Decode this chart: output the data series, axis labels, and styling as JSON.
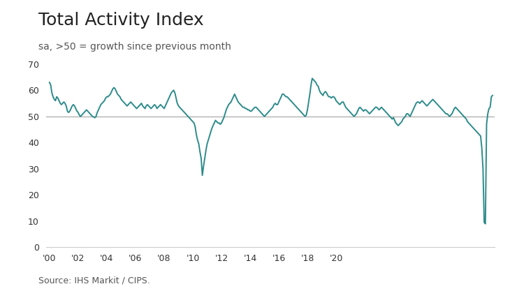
{
  "title": "Total Activity Index",
  "subtitle": "sa, >50 = growth since previous month",
  "source": "Source: IHS Markit / CIPS.",
  "line_color": "#2d8b8b",
  "reference_line_y": 50,
  "reference_line_color": "#aaaaaa",
  "ylim": [
    0,
    70
  ],
  "yticks": [
    0,
    10,
    20,
    30,
    40,
    50,
    60,
    70
  ],
  "xtick_years": [
    2000,
    2002,
    2004,
    2006,
    2008,
    2010,
    2012,
    2014,
    2016,
    2018,
    2020
  ],
  "xtick_labels": [
    "'00",
    "'02",
    "'04",
    "'06",
    "'08",
    "'10",
    "'12",
    "'14",
    "'16",
    "'18",
    "'20"
  ],
  "background_color": "#ffffff",
  "title_fontsize": 18,
  "subtitle_fontsize": 10,
  "source_fontsize": 9,
  "line_width": 1.4,
  "start_year": 2000,
  "start_month": 1,
  "values": [
    63.0,
    62.0,
    59.0,
    57.5,
    56.5,
    56.0,
    57.5,
    57.0,
    56.0,
    55.0,
    54.5,
    55.0,
    55.5,
    55.0,
    54.0,
    52.0,
    51.5,
    52.0,
    53.0,
    54.0,
    54.5,
    54.0,
    53.0,
    52.0,
    51.5,
    50.5,
    50.0,
    50.5,
    51.0,
    51.5,
    52.0,
    52.5,
    52.0,
    51.5,
    51.0,
    50.5,
    50.0,
    49.8,
    49.5,
    50.0,
    51.5,
    52.5,
    53.5,
    54.5,
    55.0,
    55.5,
    56.0,
    57.0,
    57.5,
    57.5,
    58.0,
    58.5,
    59.5,
    60.5,
    61.0,
    60.5,
    59.5,
    58.5,
    58.0,
    57.5,
    56.5,
    56.0,
    55.5,
    55.0,
    54.5,
    54.0,
    54.5,
    55.0,
    55.5,
    55.0,
    54.5,
    54.0,
    53.5,
    53.0,
    53.5,
    54.0,
    54.5,
    55.0,
    54.0,
    53.5,
    53.0,
    54.0,
    54.5,
    54.0,
    53.5,
    53.0,
    53.5,
    54.0,
    54.5,
    54.0,
    53.0,
    53.5,
    54.0,
    54.5,
    54.0,
    53.5,
    53.0,
    54.0,
    55.0,
    56.0,
    57.0,
    58.0,
    59.0,
    59.5,
    60.0,
    59.0,
    57.0,
    55.0,
    54.0,
    53.5,
    53.0,
    52.5,
    52.0,
    51.5,
    51.0,
    50.5,
    50.0,
    49.5,
    49.0,
    48.5,
    48.0,
    47.5,
    46.0,
    43.0,
    41.0,
    39.5,
    36.5,
    34.0,
    27.5,
    31.0,
    34.0,
    37.0,
    39.5,
    41.0,
    42.5,
    44.0,
    45.5,
    46.5,
    47.5,
    48.5,
    48.0,
    47.5,
    47.5,
    47.0,
    47.5,
    48.5,
    49.5,
    51.0,
    52.5,
    53.5,
    54.5,
    55.0,
    55.5,
    56.5,
    57.5,
    58.5,
    57.5,
    56.5,
    55.5,
    55.0,
    54.5,
    54.0,
    53.5,
    53.5,
    53.0,
    53.0,
    52.5,
    52.5,
    52.0,
    52.0,
    52.5,
    53.0,
    53.5,
    53.5,
    53.0,
    52.5,
    52.0,
    51.5,
    51.0,
    50.5,
    50.0,
    50.5,
    51.0,
    51.5,
    52.0,
    52.5,
    53.0,
    53.5,
    54.5,
    55.0,
    54.5,
    54.5,
    55.5,
    56.5,
    57.5,
    58.5,
    58.5,
    58.0,
    57.5,
    57.5,
    57.0,
    56.5,
    56.0,
    55.5,
    55.0,
    54.5,
    54.0,
    53.5,
    53.0,
    52.5,
    52.0,
    51.5,
    51.0,
    50.5,
    50.0,
    50.5,
    52.5,
    55.5,
    58.5,
    62.0,
    64.5,
    64.0,
    63.5,
    63.0,
    62.0,
    61.5,
    60.0,
    59.0,
    58.5,
    58.0,
    59.0,
    59.5,
    59.0,
    58.0,
    57.5,
    57.5,
    57.0,
    57.5,
    57.5,
    57.0,
    56.0,
    55.5,
    55.0,
    54.5,
    55.0,
    55.5,
    55.5,
    54.5,
    53.5,
    53.0,
    52.5,
    52.0,
    51.5,
    51.0,
    50.5,
    50.0,
    50.5,
    51.0,
    52.0,
    53.0,
    53.5,
    53.0,
    52.5,
    52.0,
    52.5,
    52.5,
    52.0,
    51.5,
    51.0,
    51.5,
    52.0,
    52.5,
    53.0,
    53.5,
    53.5,
    53.0,
    52.5,
    53.0,
    53.5,
    53.0,
    52.5,
    52.0,
    51.5,
    51.0,
    50.5,
    50.0,
    49.5,
    49.0,
    49.5,
    48.5,
    47.5,
    47.0,
    46.5,
    47.0,
    47.5,
    48.0,
    49.0,
    49.5,
    50.0,
    51.0,
    51.0,
    50.5,
    50.0,
    51.0,
    52.0,
    53.0,
    54.0,
    55.0,
    55.5,
    55.5,
    55.0,
    55.5,
    56.0,
    55.5,
    55.0,
    54.5,
    54.0,
    54.5,
    55.0,
    55.5,
    56.0,
    56.5,
    56.0,
    55.5,
    55.0,
    54.5,
    54.0,
    53.5,
    53.0,
    52.5,
    52.0,
    51.5,
    51.0,
    51.0,
    50.5,
    50.0,
    50.5,
    51.0,
    52.0,
    53.0,
    53.5,
    53.0,
    52.5,
    52.0,
    51.5,
    51.0,
    50.5,
    50.0,
    49.5,
    49.0,
    48.0,
    47.5,
    47.0,
    46.5,
    46.0,
    45.5,
    45.0,
    44.5,
    44.0,
    43.5,
    43.0,
    42.5,
    38.0,
    30.0,
    9.5,
    9.0,
    47.0,
    51.0,
    53.0,
    53.5,
    57.5,
    58.0
  ]
}
